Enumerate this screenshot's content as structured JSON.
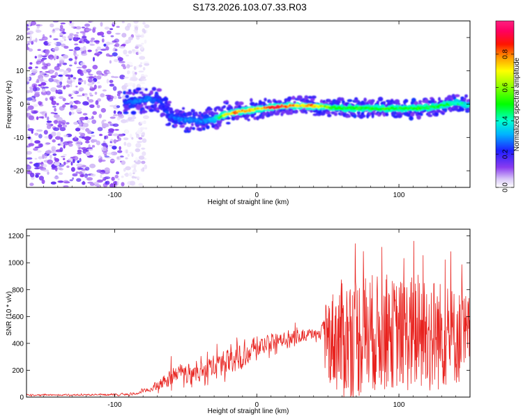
{
  "figure_title": "S173.2026.103.07.33.R03",
  "colors": {
    "snr_line": "#e8221e",
    "cloud": "#8a3cf0",
    "frame": "#000000"
  },
  "chart_data": [
    {
      "type": "heatmap",
      "title": "S173.2026.103.07.33.R03",
      "xlabel": "Height of straight line (km)",
      "ylabel": "Frequency (Hz)",
      "xlim": [
        -162,
        150
      ],
      "ylim": [
        -25,
        25
      ],
      "xticks": [
        -100,
        0,
        100
      ],
      "yticks": [
        -20,
        -10,
        0,
        10,
        20
      ],
      "colorbar": {
        "label": "Normalized spectral amplitude",
        "range": [
          0,
          1
        ],
        "ticks": [
          0.0,
          0.2,
          0.4,
          0.6,
          0.8
        ],
        "tick_labels": [
          "0.0",
          "0.2",
          "0.4",
          "0.6",
          "0.8"
        ],
        "colormap": "rainbow (violet-blue-cyan-green-yellow-red-magenta)"
      },
      "ridge": {
        "description": "Dominant frequency track vs height",
        "x": [
          -93,
          -85,
          -75,
          -68,
          -62,
          -55,
          -45,
          -38,
          -30,
          -22,
          -15,
          -8,
          0,
          10,
          20,
          30,
          40,
          50,
          60,
          70,
          80,
          90,
          100,
          110,
          120,
          130,
          140,
          150
        ],
        "frequency": [
          0.5,
          1.0,
          1.5,
          1.0,
          -3.5,
          -4.5,
          -5.0,
          -5.0,
          -4.5,
          -3.0,
          -2.5,
          -2.0,
          -1.5,
          -1.0,
          -0.5,
          -0.5,
          -0.5,
          -1.0,
          -1.2,
          -1.2,
          -1.3,
          -1.3,
          -1.3,
          -1.3,
          -1.0,
          -0.5,
          0.5,
          -0.5
        ],
        "amplitude": [
          0.25,
          0.3,
          0.3,
          0.25,
          0.25,
          0.3,
          0.3,
          0.3,
          0.35,
          0.7,
          0.8,
          0.8,
          0.7,
          0.95,
          0.9,
          0.75,
          0.8,
          0.6,
          0.5,
          0.55,
          0.5,
          0.55,
          0.5,
          0.55,
          0.5,
          0.5,
          0.45,
          0.4
        ]
      },
      "noise_region": {
        "x_range": [
          -162,
          -85
        ],
        "amplitude_range": [
          0.0,
          0.15
        ]
      }
    },
    {
      "type": "line",
      "xlabel": "Height of straight line (km)",
      "ylabel": "SNR (10 * v/v)",
      "xlim": [
        -162,
        150
      ],
      "ylim": [
        0,
        1250
      ],
      "xticks": [
        -100,
        0,
        100
      ],
      "yticks": [
        0,
        200,
        400,
        600,
        800,
        1000,
        1200
      ],
      "envelope": {
        "x": [
          -162,
          -100,
          -85,
          -75,
          -65,
          -60,
          -55,
          -50,
          -40,
          -30,
          -20,
          -10,
          0,
          10,
          20,
          30,
          40,
          45,
          50,
          60,
          70,
          80,
          90,
          100,
          110,
          120,
          130,
          140,
          150
        ],
        "baseline": [
          15,
          18,
          25,
          60,
          110,
          160,
          190,
          170,
          180,
          220,
          260,
          320,
          360,
          400,
          440,
          460,
          470,
          470,
          440,
          430,
          450,
          480,
          470,
          470,
          470,
          470,
          460,
          450,
          420
        ],
        "variation": [
          8,
          10,
          15,
          30,
          80,
          110,
          110,
          100,
          100,
          120,
          140,
          160,
          120,
          100,
          80,
          70,
          60,
          60,
          350,
          500,
          520,
          500,
          460,
          450,
          500,
          520,
          450,
          400,
          380
        ]
      }
    }
  ]
}
